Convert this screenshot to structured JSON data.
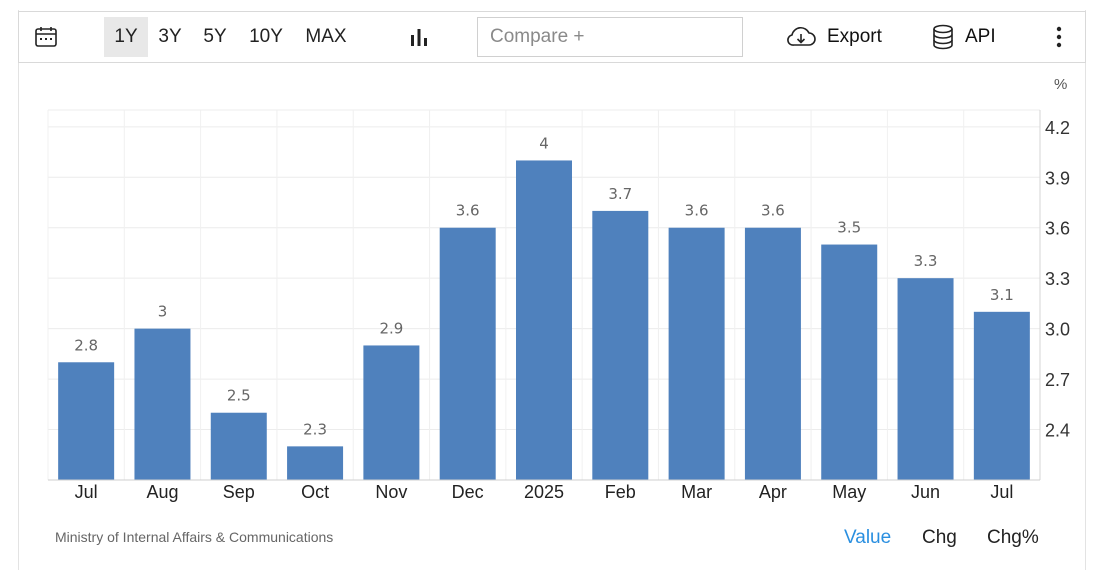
{
  "toolbar": {
    "ranges": [
      "1Y",
      "3Y",
      "5Y",
      "10Y",
      "MAX"
    ],
    "active_range": "1Y",
    "compare_placeholder": "Compare +",
    "export_label": "Export",
    "api_label": "API",
    "icons": [
      "calendar-icon",
      "bar-chart-icon",
      "cloud-download-icon",
      "database-icon",
      "more-vertical-icon"
    ]
  },
  "chart_data": {
    "type": "bar",
    "categories": [
      "Jul",
      "Aug",
      "Sep",
      "Oct",
      "Nov",
      "Dec",
      "2025",
      "Feb",
      "Mar",
      "Apr",
      "May",
      "Jun",
      "Jul"
    ],
    "values": [
      2.8,
      3,
      2.5,
      2.3,
      2.9,
      3.6,
      4,
      3.7,
      3.6,
      3.6,
      3.5,
      3.3,
      3.1
    ],
    "value_labels": [
      "2.8",
      "3",
      "2.5",
      "2.3",
      "2.9",
      "3.6",
      "4",
      "3.7",
      "3.6",
      "3.6",
      "3.5",
      "3.3",
      "3.1"
    ],
    "yticks": [
      "2.4",
      "2.7",
      "3.0",
      "3.3",
      "3.6",
      "3.9",
      "4.2"
    ],
    "unit": "%",
    "ylim": [
      2.1,
      4.3
    ],
    "y_axis_position": "right",
    "grid": true,
    "bar_color": "#4f81bd"
  },
  "footer": {
    "source": "Ministry of Internal Affairs & Communications",
    "modes": [
      "Value",
      "Chg",
      "Chg%"
    ],
    "active_mode": "Value",
    "active_color": "#2a8fe0"
  }
}
